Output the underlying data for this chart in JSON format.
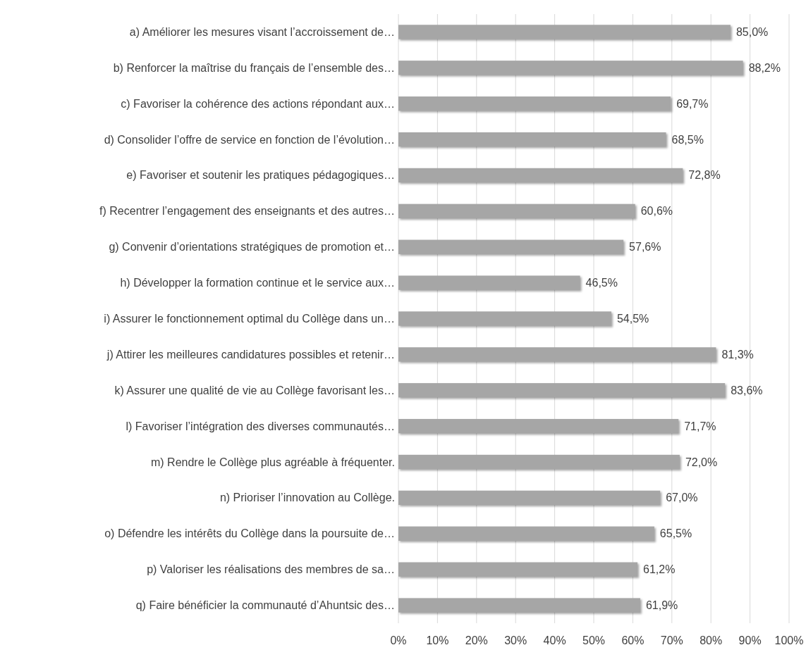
{
  "chart_data": {
    "type": "bar",
    "orientation": "horizontal",
    "categories": [
      "a) Améliorer les mesures visant l’accroissement de…",
      "b) Renforcer la maîtrise du français de l’ensemble des…",
      "c) Favoriser la cohérence des actions répondant aux…",
      "d) Consolider l’offre de service en fonction de l’évolution…",
      "e) Favoriser et soutenir les pratiques pédagogiques…",
      "f) Recentrer l’engagement des enseignants et des autres…",
      "g) Convenir d’orientations stratégiques de promotion et…",
      "h) Développer la formation continue et le service aux…",
      "i) Assurer le fonctionnement optimal du Collège dans un…",
      "j) Attirer les meilleures candidatures possibles et retenir…",
      "k) Assurer une qualité de vie au Collège favorisant les…",
      "l) Favoriser l’intégration des diverses communautés…",
      "m) Rendre le Collège plus agréable à fréquenter.",
      "n) Prioriser l’innovation au Collège.",
      "o) Défendre les intérêts du Collège dans la poursuite de…",
      "p) Valoriser les réalisations des membres de sa…",
      "q) Faire bénéficier la communauté d’Ahuntsic des…"
    ],
    "values": [
      85.0,
      88.2,
      69.7,
      68.5,
      72.8,
      60.6,
      57.6,
      46.5,
      54.5,
      81.3,
      83.6,
      71.7,
      72.0,
      67.0,
      65.5,
      61.2,
      61.9
    ],
    "value_labels": [
      "85,0%",
      "88,2%",
      "69,7%",
      "68,5%",
      "72,8%",
      "60,6%",
      "57,6%",
      "46,5%",
      "54,5%",
      "81,3%",
      "83,6%",
      "71,7%",
      "72,0%",
      "67,0%",
      "65,5%",
      "61,2%",
      "61,9%"
    ],
    "color": "#a6a6a6",
    "xlim": [
      0,
      100
    ],
    "xticks": [
      {
        "value": 0,
        "label": "0%"
      },
      {
        "value": 10,
        "label": "10%"
      },
      {
        "value": 20,
        "label": "20%"
      },
      {
        "value": 30,
        "label": "30%"
      },
      {
        "value": 40,
        "label": "40%"
      },
      {
        "value": 50,
        "label": "50%"
      },
      {
        "value": 60,
        "label": "60%"
      },
      {
        "value": 70,
        "label": "70%"
      },
      {
        "value": 80,
        "label": "80%"
      },
      {
        "value": 90,
        "label": "90%"
      },
      {
        "value": 100,
        "label": "100%"
      }
    ],
    "grid": "x"
  }
}
